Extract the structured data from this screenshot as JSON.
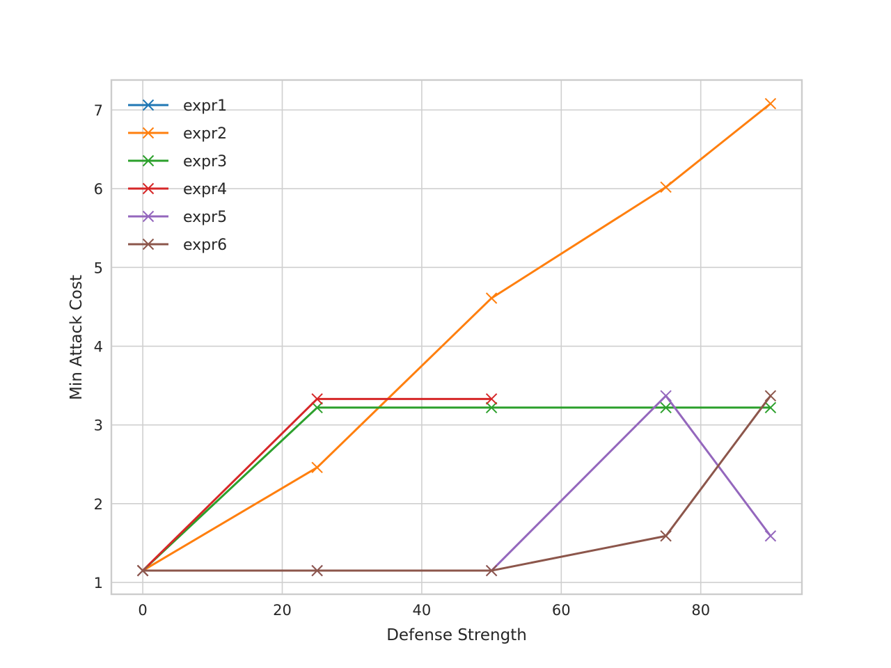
{
  "chart_data": {
    "type": "line",
    "title": "",
    "xlabel": "Defense Strength",
    "ylabel": "Min Attack Cost",
    "xlim": [
      -4.5,
      94.5
    ],
    "ylim": [
      0.85,
      7.38
    ],
    "xticks": [
      0,
      20,
      40,
      60,
      80
    ],
    "yticks": [
      1,
      2,
      3,
      4,
      5,
      6,
      7
    ],
    "grid": true,
    "legend_position": "upper-left",
    "marker": "x",
    "series": [
      {
        "name": "expr1",
        "color": "#1f77b4",
        "x": [
          0
        ],
        "y": [
          1.15
        ]
      },
      {
        "name": "expr2",
        "color": "#ff7f0e",
        "x": [
          0,
          25,
          50,
          75,
          90
        ],
        "y": [
          1.15,
          2.46,
          4.61,
          6.02,
          7.08
        ]
      },
      {
        "name": "expr3",
        "color": "#2ca02c",
        "x": [
          0,
          25,
          50,
          75,
          90
        ],
        "y": [
          1.15,
          3.22,
          3.22,
          3.22,
          3.22
        ]
      },
      {
        "name": "expr4",
        "color": "#d62728",
        "x": [
          0,
          25,
          50
        ],
        "y": [
          1.15,
          3.33,
          3.33
        ]
      },
      {
        "name": "expr5",
        "color": "#9467bd",
        "x": [
          0,
          25,
          50,
          75,
          90
        ],
        "y": [
          1.15,
          1.15,
          1.15,
          3.37,
          1.59
        ]
      },
      {
        "name": "expr6",
        "color": "#8c564b",
        "x": [
          0,
          25,
          50,
          75,
          90
        ],
        "y": [
          1.15,
          1.15,
          1.15,
          1.59,
          3.37
        ]
      }
    ]
  }
}
